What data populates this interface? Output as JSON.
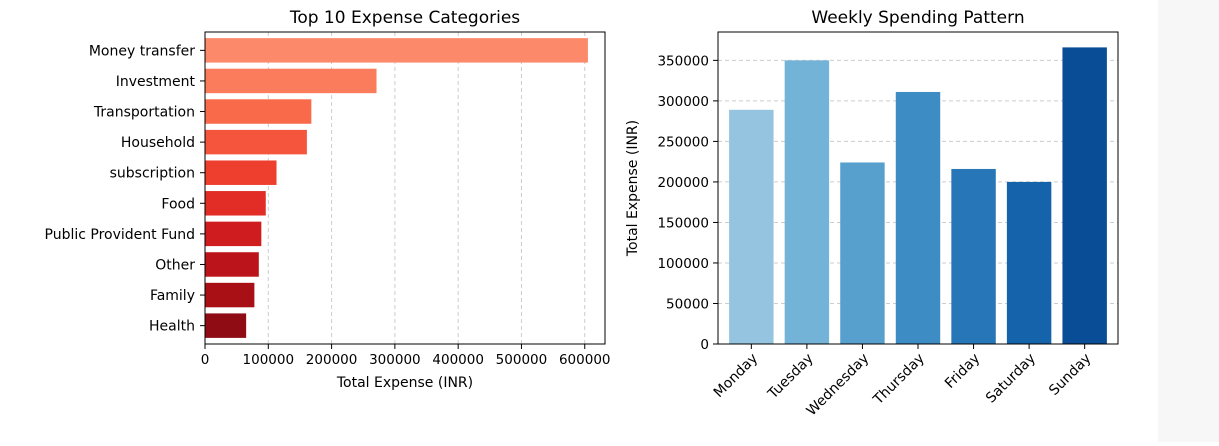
{
  "chart_data": [
    {
      "type": "bar",
      "orientation": "horizontal",
      "title": "Top 10 Expense Categories",
      "xlabel": "Total Expense (INR)",
      "ylabel": "",
      "categories": [
        "Money transfer",
        "Investment",
        "Transportation",
        "Household",
        "subscription",
        "Food",
        "Public Provident Fund",
        "Other",
        "Family",
        "Health"
      ],
      "values": [
        605000,
        271000,
        168000,
        161000,
        113000,
        96000,
        89000,
        85000,
        78000,
        65000
      ],
      "xlim": [
        0,
        632000
      ],
      "xticks": [
        0,
        100000,
        200000,
        300000,
        400000,
        500000,
        600000
      ],
      "grid": "x-dashed",
      "colors": [
        "#fc8a6a",
        "#fb7c5c",
        "#f96a4b",
        "#f5553c",
        "#ee3e2d",
        "#e12d26",
        "#cf1c1f",
        "#bb141a",
        "#a81016",
        "#8f0c14"
      ]
    },
    {
      "type": "bar",
      "orientation": "vertical",
      "title": "Weekly Spending Pattern",
      "xlabel": "",
      "ylabel": "Total Expense (INR)",
      "categories": [
        "Monday",
        "Tuesday",
        "Wednesday",
        "Thursday",
        "Friday",
        "Saturday",
        "Sunday"
      ],
      "values": [
        289000,
        350000,
        224000,
        311000,
        216000,
        200000,
        366000
      ],
      "ylim": [
        0,
        385000
      ],
      "yticks": [
        0,
        50000,
        100000,
        150000,
        200000,
        250000,
        300000,
        350000
      ],
      "grid": "y-dashed",
      "colors": [
        "#94c4df",
        "#74b3d8",
        "#57a0ce",
        "#3d8dc4",
        "#2777b8",
        "#1563aa",
        "#084d96"
      ]
    }
  ]
}
